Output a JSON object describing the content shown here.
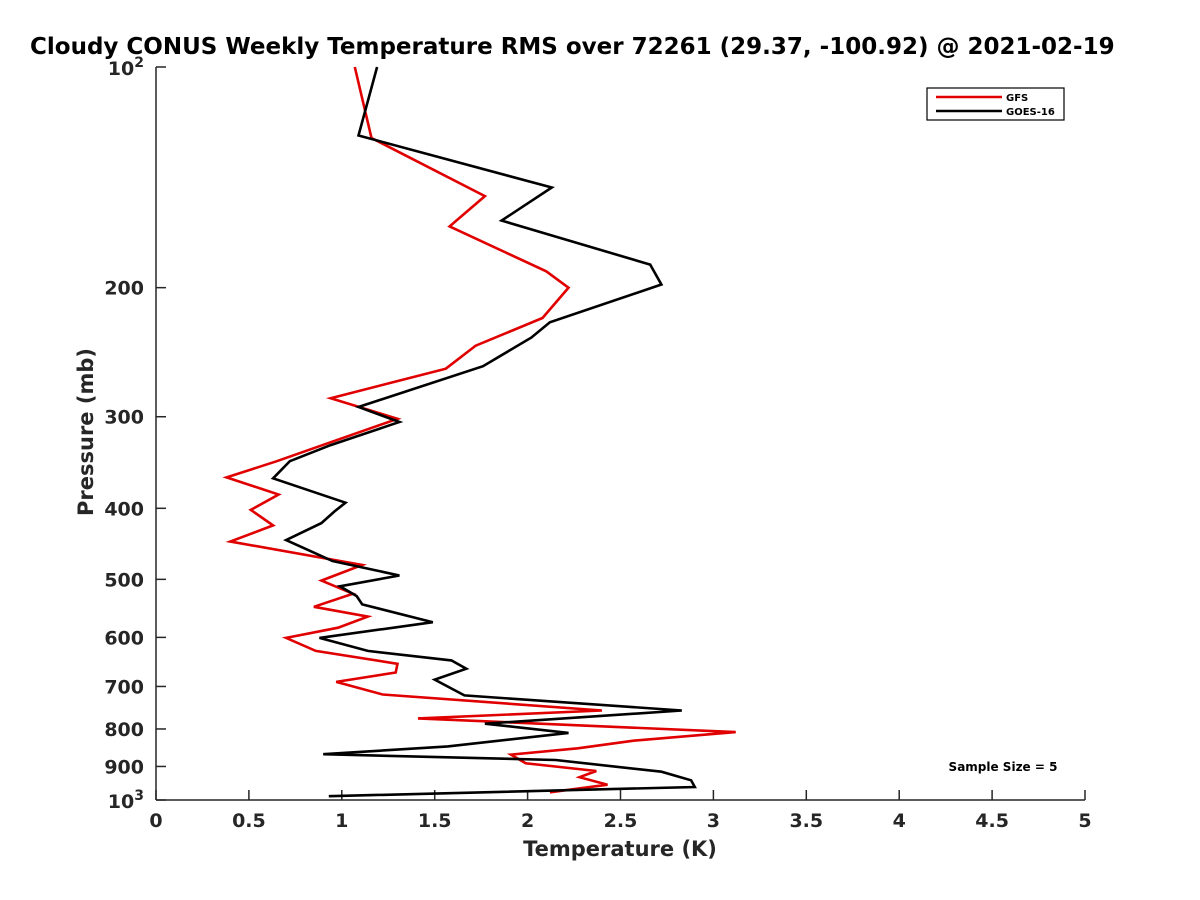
{
  "chart_data": {
    "type": "line",
    "title": "Cloudy CONUS Weekly Temperature RMS over 72261 (29.37, -100.92) @ 2021-02-19",
    "xlabel": "Temperature (K)",
    "ylabel": "Pressure (mb)",
    "xlim": [
      0,
      5
    ],
    "ylim": [
      100,
      1000
    ],
    "yscale": "log",
    "y_reversed": true,
    "x_ticks": [
      0,
      0.5,
      1,
      1.5,
      2,
      2.5,
      3,
      3.5,
      4,
      4.5,
      5
    ],
    "x_tick_labels": [
      "0",
      "0.5",
      "1",
      "1.5",
      "2",
      "2.5",
      "3",
      "3.5",
      "4",
      "4.5",
      "5"
    ],
    "y_ticks": [
      200,
      300,
      400,
      500,
      600,
      700,
      800,
      900
    ],
    "y_tick_labels": [
      "200",
      "300",
      "400",
      "500",
      "600",
      "700",
      "800",
      "900"
    ],
    "y_exp_ticks": [
      {
        "value": 100,
        "base": "10",
        "exp": "2"
      },
      {
        "value": 1000,
        "base": "10",
        "exp": "3"
      }
    ],
    "legend_position": "top-right",
    "annotation": "Sample Size = 5",
    "series": [
      {
        "name": "GFS",
        "color": "#e00000",
        "points": [
          [
            1.07,
            100
          ],
          [
            1.16,
            125
          ],
          [
            1.77,
            150
          ],
          [
            1.58,
            165
          ],
          [
            2.1,
            190
          ],
          [
            2.22,
            200
          ],
          [
            2.08,
            220
          ],
          [
            1.72,
            240
          ],
          [
            1.56,
            258
          ],
          [
            0.94,
            283
          ],
          [
            1.3,
            302
          ],
          [
            0.91,
            327
          ],
          [
            0.65,
            345
          ],
          [
            0.38,
            363
          ],
          [
            0.66,
            383
          ],
          [
            0.51,
            402
          ],
          [
            0.63,
            422
          ],
          [
            0.4,
            444
          ],
          [
            1.11,
            478
          ],
          [
            0.89,
            502
          ],
          [
            1.06,
            523
          ],
          [
            0.85,
            545
          ],
          [
            1.14,
            562
          ],
          [
            0.98,
            582
          ],
          [
            0.7,
            601
          ],
          [
            0.86,
            626
          ],
          [
            1.3,
            652
          ],
          [
            1.29,
            670
          ],
          [
            0.97,
            690
          ],
          [
            1.22,
            718
          ],
          [
            2.4,
            755
          ],
          [
            1.41,
            774
          ],
          [
            3.12,
            808
          ],
          [
            2.57,
            830
          ],
          [
            2.27,
            850
          ],
          [
            1.91,
            867
          ],
          [
            1.99,
            891
          ],
          [
            2.37,
            913
          ],
          [
            2.28,
            931
          ],
          [
            2.43,
            953
          ],
          [
            2.12,
            976
          ]
        ]
      },
      {
        "name": "GOES-16",
        "color": "#000000",
        "points": [
          [
            1.19,
            100
          ],
          [
            1.09,
            124
          ],
          [
            2.13,
            146
          ],
          [
            1.86,
            162
          ],
          [
            2.66,
            186
          ],
          [
            2.72,
            198
          ],
          [
            2.12,
            223
          ],
          [
            2.02,
            234
          ],
          [
            1.76,
            256
          ],
          [
            1.09,
            291
          ],
          [
            1.31,
            305
          ],
          [
            0.94,
            328
          ],
          [
            0.72,
            345
          ],
          [
            0.63,
            364
          ],
          [
            1.02,
            393
          ],
          [
            0.96,
            404
          ],
          [
            0.89,
            419
          ],
          [
            0.7,
            442
          ],
          [
            0.95,
            472
          ],
          [
            1.31,
            494
          ],
          [
            0.99,
            511
          ],
          [
            1.08,
            527
          ],
          [
            1.11,
            541
          ],
          [
            1.49,
            572
          ],
          [
            0.88,
            601
          ],
          [
            1.14,
            626
          ],
          [
            1.59,
            645
          ],
          [
            1.67,
            662
          ],
          [
            1.5,
            685
          ],
          [
            1.66,
            720
          ],
          [
            2.83,
            755
          ],
          [
            1.77,
            787
          ],
          [
            2.22,
            810
          ],
          [
            1.57,
            845
          ],
          [
            0.9,
            866
          ],
          [
            2.15,
            882
          ],
          [
            2.72,
            915
          ],
          [
            2.88,
            940
          ],
          [
            2.9,
            960
          ],
          [
            0.93,
            988
          ]
        ]
      }
    ]
  }
}
